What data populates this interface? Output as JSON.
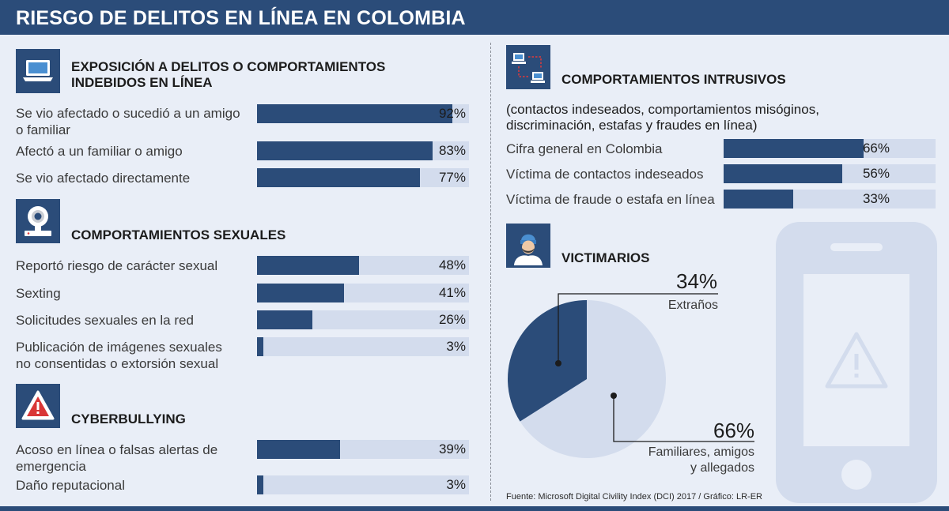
{
  "title": "RIESGO DE DELITOS EN LÍNEA EN COLOMBIA",
  "colors": {
    "accent": "#2b4c79",
    "track": "#d3dced",
    "background": "#e9eef7",
    "pie_light": "#d3dced"
  },
  "left": {
    "exposicion": {
      "title_line1": "EXPOSICIÓN A DELITOS O COMPORTAMIENTOS",
      "title_line2": "INDEBIDOS EN LÍNEA",
      "icon": "laptop-icon"
    },
    "sexuales": {
      "title": "COMPORTAMIENTOS SEXUALES",
      "icon": "webcam-icon"
    },
    "cyber": {
      "title": "CYBERBULLYING",
      "icon": "warning-icon"
    }
  },
  "right": {
    "intrusivos": {
      "title": "COMPORTAMIENTOS INTRUSIVOS",
      "subtitle_line1": "(contactos indeseados, comportamientos misóginos,",
      "subtitle_line2": "discriminación, estafas y fraudes en línea)",
      "icon": "network-icon"
    },
    "victimarios": {
      "title": "VICTIMARIOS",
      "icon": "person-icon",
      "phone_icon": "phone-warning-icon"
    }
  },
  "source": "Fuente: Microsoft Digital Civility Index (DCI) 2017 / Gráfico: LR-ER",
  "chart_data": [
    {
      "type": "bar",
      "orientation": "horizontal",
      "title": "EXPOSICIÓN A DELITOS O COMPORTAMIENTOS INDEBIDOS EN LÍNEA",
      "xlim": [
        0,
        100
      ],
      "items": [
        {
          "label_lines": [
            "Se vio afectado o sucedió a un amigo",
            "o familiar"
          ],
          "value": 92,
          "value_label": "92%"
        },
        {
          "label_lines": [
            "Afectó a un familiar o amigo"
          ],
          "value": 83,
          "value_label": "83%"
        },
        {
          "label_lines": [
            "Se vio afectado directamente"
          ],
          "value": 77,
          "value_label": "77%"
        }
      ]
    },
    {
      "type": "bar",
      "orientation": "horizontal",
      "title": "COMPORTAMIENTOS SEXUALES",
      "xlim": [
        0,
        100
      ],
      "items": [
        {
          "label_lines": [
            "Reportó riesgo de carácter sexual"
          ],
          "value": 48,
          "value_label": "48%"
        },
        {
          "label_lines": [
            "Sexting"
          ],
          "value": 41,
          "value_label": "41%"
        },
        {
          "label_lines": [
            "Solicitudes sexuales en la red"
          ],
          "value": 26,
          "value_label": "26%"
        },
        {
          "label_lines": [
            "Publicación de imágenes sexuales",
            "no consentidas o extorsión sexual"
          ],
          "value": 3,
          "value_label": "3%"
        }
      ]
    },
    {
      "type": "bar",
      "orientation": "horizontal",
      "title": "CYBERBULLYING",
      "xlim": [
        0,
        100
      ],
      "items": [
        {
          "label_lines": [
            "Acoso en línea o falsas alertas de",
            "emergencia"
          ],
          "value": 39,
          "value_label": "39%"
        },
        {
          "label_lines": [
            "Daño reputacional"
          ],
          "value": 3,
          "value_label": "3%"
        }
      ]
    },
    {
      "type": "bar",
      "orientation": "horizontal",
      "title": "COMPORTAMIENTOS INTRUSIVOS",
      "xlim": [
        0,
        100
      ],
      "items": [
        {
          "label_lines": [
            "Cifra general en Colombia"
          ],
          "value": 66,
          "value_label": "66%"
        },
        {
          "label_lines": [
            "Víctima de contactos indeseados"
          ],
          "value": 56,
          "value_label": "56%"
        },
        {
          "label_lines": [
            "Víctima de fraude o estafa en línea"
          ],
          "value": 33,
          "value_label": "33%"
        }
      ]
    },
    {
      "type": "pie",
      "title": "VICTIMARIOS",
      "slices": [
        {
          "label": "Extraños",
          "value": 34,
          "value_label": "34%"
        },
        {
          "label_lines": [
            "Familiares, amigos",
            "y allegados"
          ],
          "value": 66,
          "value_label": "66%"
        }
      ]
    }
  ]
}
